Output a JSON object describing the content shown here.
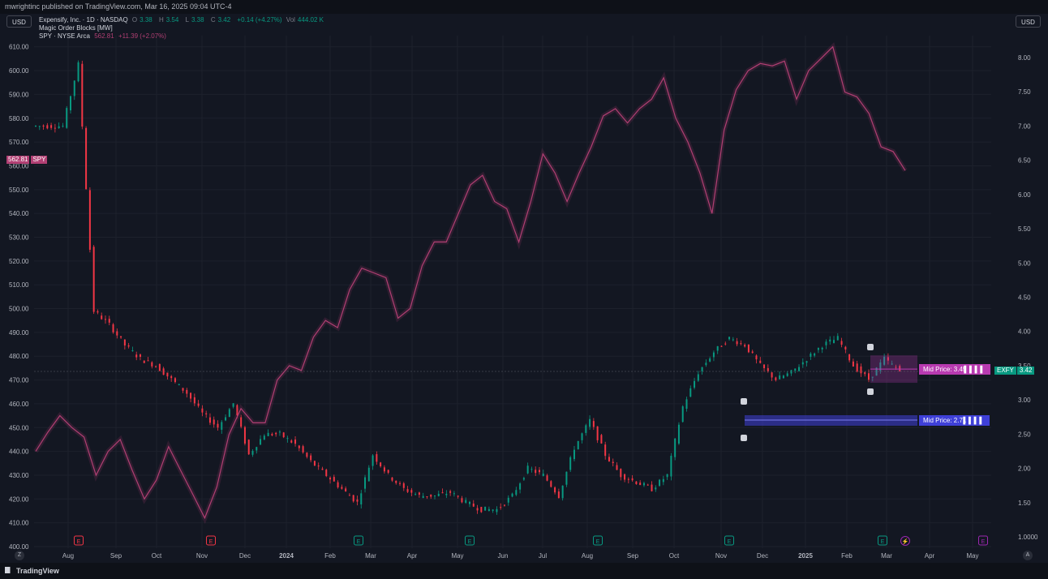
{
  "header": {
    "published": "mwrightinc published on TradingView.com, Mar 16, 2025 09:04 UTC-4"
  },
  "currency": {
    "left": "USD",
    "right": "USD"
  },
  "legend": {
    "title": "Expensify, Inc. · 1D · NASDAQ",
    "o_label": "O",
    "o_value": "3.38",
    "h_label": "H",
    "h_value": "3.54",
    "l_label": "L",
    "l_value": "3.38",
    "c_label": "C",
    "c_value": "3.42",
    "change": "+0.14 (+4.27%)",
    "vol_label": "Vol",
    "vol_value": "444.02 K",
    "indicator": "Magic Order Blocks [MW]",
    "compare_name": "SPY · NYSE Arca",
    "compare_price": "562.81",
    "compare_change": "+11.39 (+2.07%)"
  },
  "badges": {
    "spy_price": "562.81",
    "spy_symbol": "SPY",
    "exfy_symbol": "EXFY",
    "exfy_price": "3.42",
    "mid_upper": "Mid Price: 3.45",
    "mid_lower": "Mid Price: 2.71"
  },
  "colors": {
    "up": "#089981",
    "down": "#f23645",
    "spy_line": "#b13f73",
    "mid_upper": "#b83ab0",
    "mid_lower": "#3f40d8",
    "exfy_badge": "#089981"
  },
  "event_markers": [
    {
      "label": "E",
      "x": "Aug 2023",
      "kind": "earnings-negative"
    },
    {
      "label": "E",
      "x": "Nov 2023",
      "kind": "earnings-negative"
    },
    {
      "label": "E",
      "x": "Feb 2024",
      "kind": "earnings-positive"
    },
    {
      "label": "E",
      "x": "May 2024",
      "kind": "earnings-positive"
    },
    {
      "label": "E",
      "x": "Aug 2024",
      "kind": "earnings-positive"
    },
    {
      "label": "E",
      "x": "Nov 2024",
      "kind": "earnings-positive"
    },
    {
      "label": "E",
      "x": "Feb 2025",
      "kind": "earnings-positive"
    },
    {
      "label": "⚡",
      "x": "Mar 2025",
      "kind": "split"
    },
    {
      "label": "E",
      "x": "May 2025",
      "kind": "earnings-upcoming"
    }
  ],
  "footer": {
    "brand": "TradingView",
    "left_btn": "Z",
    "right_btn": "A"
  },
  "chart_data": {
    "type": "line",
    "x_ticks": [
      "Aug",
      "Sep",
      "Oct",
      "Nov",
      "Dec",
      "2024",
      "Feb",
      "Mar",
      "Apr",
      "May",
      "Jun",
      "Jul",
      "Aug",
      "Sep",
      "Oct",
      "Nov",
      "Dec",
      "2025",
      "Feb",
      "Mar",
      "Apr",
      "May"
    ],
    "left_axis": {
      "label": "SPY",
      "ticks": [
        "610.00",
        "600.00",
        "590.00",
        "580.00",
        "570.00",
        "560.00",
        "550.00",
        "540.00",
        "530.00",
        "520.00",
        "510.00",
        "500.00",
        "490.00",
        "480.00",
        "470.00",
        "460.00",
        "450.00",
        "440.00",
        "430.00",
        "420.00",
        "410.00",
        "400.00"
      ],
      "range": [
        400,
        614
      ]
    },
    "right_axis": {
      "label": "EXFY",
      "ticks": [
        "8.00",
        "7.50",
        "7.00",
        "6.50",
        "6.00",
        "5.50",
        "5.00",
        "4.50",
        "4.00",
        "3.50",
        "3.00",
        "2.50",
        "2.00",
        "1.50",
        "1.0000"
      ],
      "range": [
        1.0,
        8.1
      ]
    },
    "series": [
      {
        "name": "SPY",
        "axis": "left",
        "values": [
          440,
          448,
          455,
          450,
          446,
          430,
          440,
          445,
          432,
          420,
          428,
          442,
          432,
          422,
          412,
          425,
          447,
          458,
          452,
          452,
          470,
          476,
          474,
          488,
          495,
          492,
          508,
          517,
          515,
          513,
          496,
          500,
          518,
          528,
          528,
          540,
          552,
          556,
          545,
          542,
          528,
          545,
          565,
          557,
          545,
          557,
          568,
          581,
          584,
          578,
          584,
          588,
          597,
          580,
          570,
          557,
          540,
          575,
          592,
          600,
          603,
          602,
          604,
          588,
          600,
          605,
          610,
          591,
          589,
          582,
          568,
          566,
          558
        ]
      },
      {
        "name": "EXFY",
        "axis": "right",
        "values": [
          7.0,
          7.0,
          7.0,
          7.9,
          4.3,
          4.1,
          3.8,
          3.6,
          3.5,
          3.3,
          3.1,
          2.8,
          2.6,
          2.95,
          2.2,
          2.5,
          2.5,
          2.35,
          2.1,
          1.9,
          1.7,
          1.5,
          2.2,
          1.9,
          1.7,
          1.6,
          1.6,
          1.65,
          1.5,
          1.4,
          1.4,
          1.6,
          2.0,
          1.9,
          1.6,
          2.3,
          2.7,
          2.2,
          1.9,
          1.8,
          1.7,
          1.9,
          2.9,
          3.4,
          3.7,
          3.9,
          3.8,
          3.5,
          3.3,
          3.4,
          3.6,
          3.8,
          3.9,
          3.5,
          3.3,
          3.6,
          3.42
        ]
      }
    ],
    "order_blocks": [
      {
        "label": "Mid Price: 3.45",
        "mid": 3.45,
        "range": [
          3.25,
          3.65
        ],
        "color": "#b83ab0"
      },
      {
        "label": "Mid Price: 2.71",
        "mid": 2.71,
        "range": [
          2.65,
          2.78
        ],
        "color": "#3f40d8"
      }
    ],
    "crosshair_value": 3.45,
    "grid": true
  }
}
